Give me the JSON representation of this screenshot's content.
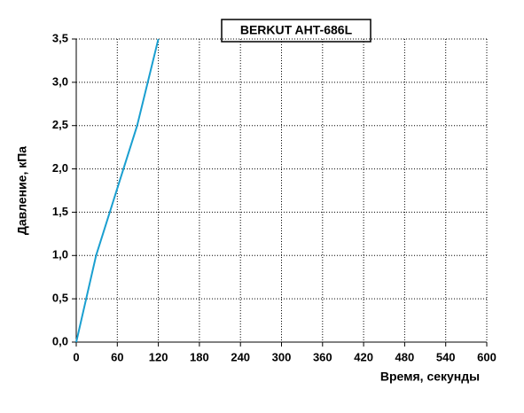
{
  "chart_data": {
    "type": "line",
    "title": "BERKUT AHT-686L",
    "x_label": "Время, секунды",
    "y_label": "Давление, кПа",
    "x": [
      0,
      29,
      89,
      120
    ],
    "series": [
      {
        "name": "BERKUT AHT-686L",
        "color": "#1a9fd0",
        "values": [
          0,
          1.0,
          2.5,
          3.5
        ]
      }
    ],
    "xlim": [
      0,
      600
    ],
    "xticks": [
      0,
      60,
      120,
      180,
      240,
      300,
      360,
      420,
      480,
      540,
      600
    ],
    "ylim": [
      0,
      3.5
    ],
    "yticks": [
      {
        "value": 0,
        "label": "0,0"
      },
      {
        "value": 0.5,
        "label": "0,5"
      },
      {
        "value": 1,
        "label": "1,0"
      },
      {
        "value": 1.5,
        "label": "1,5"
      },
      {
        "value": 2,
        "label": "2,0"
      },
      {
        "value": 2.5,
        "label": "2,5"
      },
      {
        "value": 3,
        "label": "3,0"
      },
      {
        "value": 3.5,
        "label": "3,5"
      }
    ],
    "grid": true
  }
}
